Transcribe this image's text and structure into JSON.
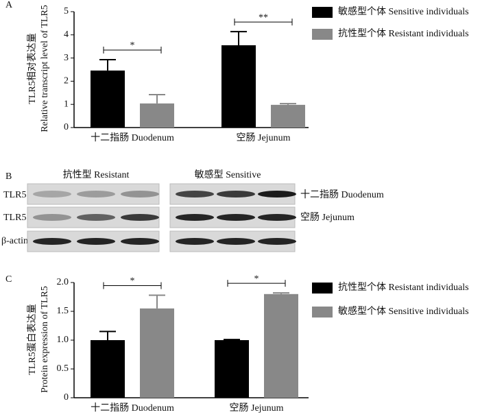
{
  "chart_data": [
    {
      "type": "bar",
      "panel": "A",
      "ylabel": [
        "TLR5相对表达量",
        "Relative transcript level of TLR5"
      ],
      "categories": [
        "十二指肠 Duodenum",
        "空肠 Jejunum"
      ],
      "series": [
        {
          "name": "敏感型个体 Sensitive individuals",
          "color": "#000000",
          "values": [
            2.46,
            3.55
          ],
          "errors": [
            0.47,
            0.59
          ]
        },
        {
          "name": "抗性型个体 Resistant individuals",
          "color": "#888888",
          "values": [
            1.04,
            0.98
          ],
          "errors": [
            0.38,
            0.05
          ]
        }
      ],
      "significance": [
        "*",
        "**"
      ],
      "ylim": [
        0,
        5
      ],
      "yticks": [
        0,
        1,
        2,
        3,
        4,
        5
      ],
      "grid": false,
      "legend": "right"
    },
    {
      "type": "bar",
      "panel": "C",
      "ylabel": [
        "TLR5蛋白表达量",
        "Protein expression of TLR5"
      ],
      "categories": [
        "十二指肠 Duodenum",
        "空肠 Jejunum"
      ],
      "series": [
        {
          "name": "抗性型个体 Resistant individuals",
          "color": "#000000",
          "values": [
            1.0,
            1.0
          ],
          "errors": [
            0.15,
            0.01
          ]
        },
        {
          "name": "敏感型个体 Sensitive individuals",
          "color": "#888888",
          "values": [
            1.55,
            1.8
          ],
          "errors": [
            0.23,
            0.02
          ]
        }
      ],
      "significance": [
        "*",
        "*"
      ],
      "ylim": [
        0,
        2
      ],
      "yticks": [
        0,
        0.5,
        {
          "value": 1,
          "label": "1.0"
        },
        1.5,
        {
          "value": 2,
          "label": "2.0"
        }
      ],
      "grid": false,
      "legend": "right"
    }
  ],
  "blot": {
    "panel": "B",
    "groups": [
      "抗性型 Resistant",
      "敏感型 Sensitive"
    ],
    "rows": [
      "TLR5",
      "TLR5",
      "β-actin"
    ],
    "tissues": [
      "十二指肠 Duodenum",
      "空肠 Jejunum"
    ]
  }
}
